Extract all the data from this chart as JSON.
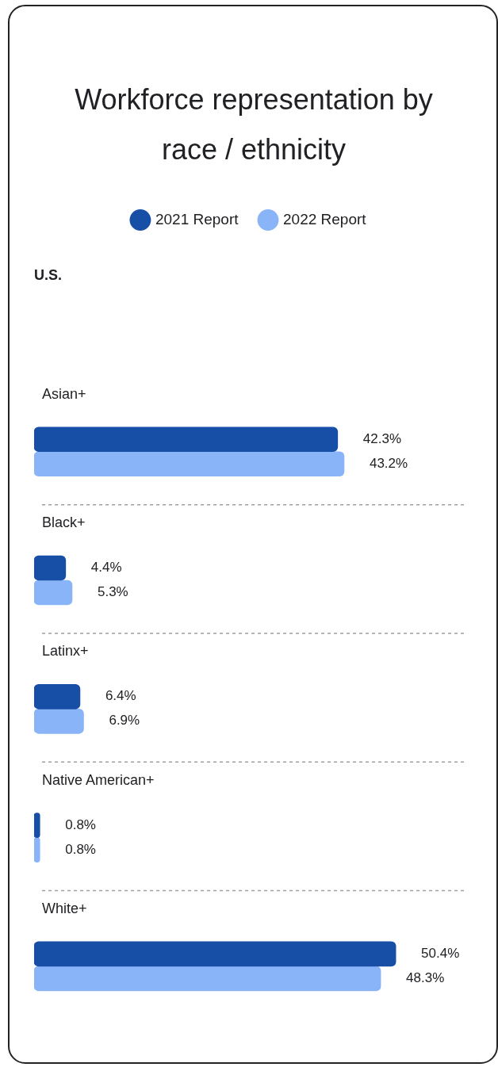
{
  "chart_data": {
    "type": "bar",
    "orientation": "horizontal",
    "title": "Workforce representation by race / ethnicity",
    "subtitle": "U.S.",
    "legend": "top",
    "categories": [
      "Asian+",
      "Black+",
      "Latinx+",
      "Native American+",
      "White+"
    ],
    "series": [
      {
        "name": "2021 Report",
        "color": "#174ea6",
        "values": [
          42.3,
          4.4,
          6.4,
          0.8,
          50.4
        ],
        "value_labels": [
          "42.3%",
          "4.4%",
          "6.4%",
          "0.8%",
          "50.4%"
        ]
      },
      {
        "name": "2022 Report",
        "color": "#8ab4f8",
        "values": [
          43.2,
          5.3,
          6.9,
          0.8,
          48.3
        ],
        "value_labels": [
          "43.2%",
          "5.3%",
          "6.9%",
          "0.8%",
          "48.3%"
        ]
      }
    ]
  }
}
